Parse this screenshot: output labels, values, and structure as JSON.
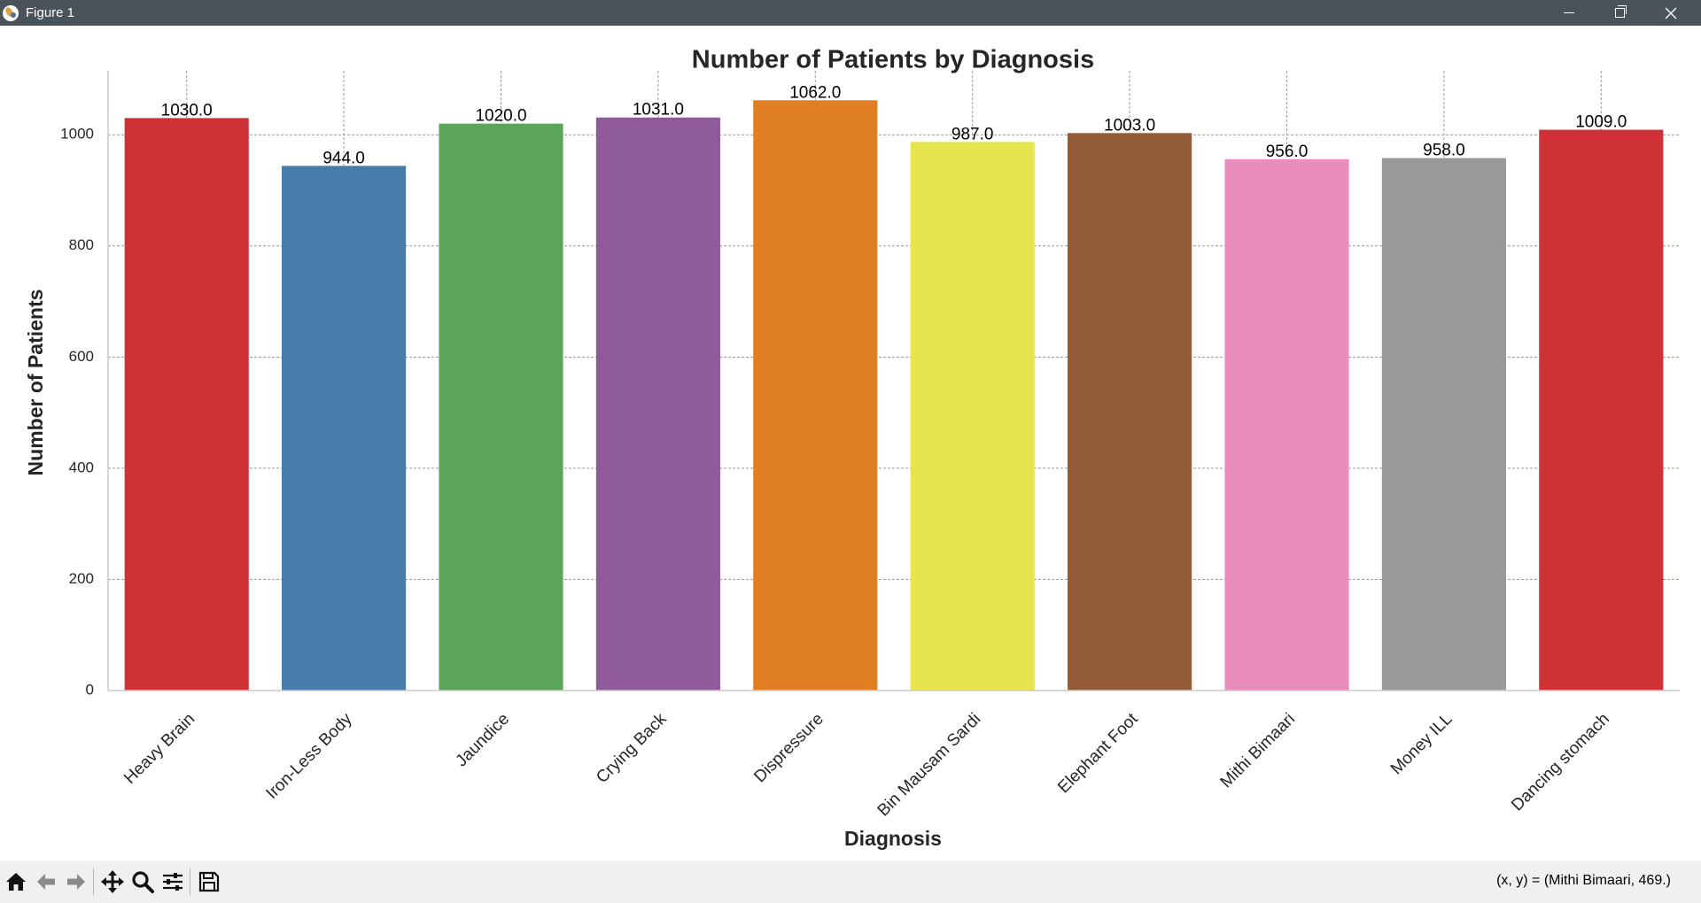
{
  "window": {
    "title": "Figure 1"
  },
  "toolbar": {
    "buttons": [
      "home-icon",
      "back-icon",
      "forward-icon",
      "pan-icon",
      "zoom-icon",
      "configure-subplots-icon",
      "save-icon"
    ],
    "coordinate_readout": "(x, y) = (Mithi Bimaari, 469.)"
  },
  "chart_data": {
    "type": "bar",
    "title": "Number of Patients by Diagnosis",
    "xlabel": "Diagnosis",
    "ylabel": "Number of Patients",
    "categories": [
      "Heavy Brain",
      "Iron-Less Body",
      "Jaundice",
      "Crying Back",
      "Dispressure",
      "Bin Mausam Sardi",
      "Elephant Foot",
      "Mithi Bimaari",
      "Money ILL",
      "Dancing stomach"
    ],
    "values": [
      1030,
      944,
      1020,
      1031,
      1062,
      987,
      1003,
      956,
      958,
      1009
    ],
    "value_labels": [
      "1030.0",
      "944.0",
      "1020.0",
      "1031.0",
      "1062.0",
      "987.0",
      "1003.0",
      "956.0",
      "958.0",
      "1009.0"
    ],
    "colors": [
      "#cf3236",
      "#467bab",
      "#5ba55a",
      "#8f5a9a",
      "#e07e22",
      "#e6e550",
      "#945b38",
      "#e98ebc",
      "#999999",
      "#cf3236"
    ],
    "yticks": [
      0,
      200,
      400,
      600,
      800,
      1000
    ],
    "ylim": [
      0,
      1115
    ],
    "grid": true,
    "grid_style": "dashed",
    "xtick_rotation": -45
  }
}
